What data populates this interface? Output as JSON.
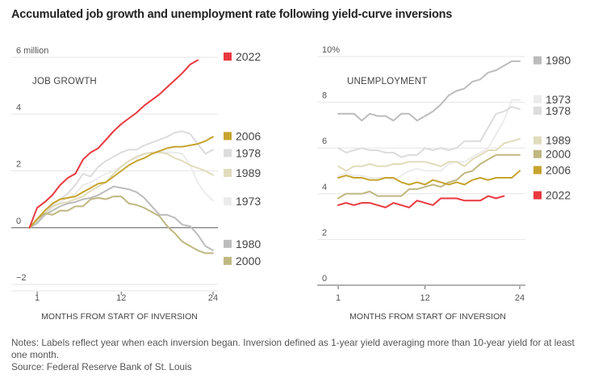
{
  "title": "Accumulated job growth and unemployment rate following yield-curve inversions",
  "notes": {
    "note": "Notes: Labels reflect year when each inversion began. Inversion defined as 1-year yield averaging more than 10-year yield for at least one month.",
    "source": "Source: Federal Reserve Bank of St. Louis"
  },
  "colors": {
    "2022": "#e8393f",
    "2006": "#c6a42e",
    "1978": "#dcdcdc",
    "1989": "#e0dcbc",
    "1973": "#ececec",
    "1980": "#bcbcbc",
    "2000": "#c0b882"
  },
  "chart_data": [
    {
      "type": "line",
      "title": "JOB GROWTH",
      "xlabel": "MONTHS FROM START OF INVERSION",
      "ylabel": "",
      "ylim": [
        -2,
        6
      ],
      "xlim": [
        0,
        24
      ],
      "yticks": [
        {
          "v": 6,
          "label": "6 million"
        },
        {
          "v": 4,
          "label": "4"
        },
        {
          "v": 2,
          "label": "2"
        },
        {
          "v": 0,
          "label": "0"
        },
        {
          "v": -2,
          "label": "−2"
        }
      ],
      "xticks": [
        {
          "v": 1,
          "label": "1"
        },
        {
          "v": 12,
          "label": "12"
        },
        {
          "v": 24,
          "label": "24"
        }
      ],
      "grid": true,
      "legend_position": "right",
      "x_start": 0,
      "series": [
        {
          "name": "1973",
          "values": [
            0,
            0.2,
            0.45,
            0.7,
            0.9,
            1.05,
            1.2,
            1.5,
            1.6,
            1.75,
            1.9,
            2.0,
            2.15,
            2.35,
            2.45,
            2.6,
            2.65,
            2.7,
            2.65,
            2.65,
            2.6,
            2.2,
            1.6,
            1.2,
            0.95
          ]
        },
        {
          "name": "1978",
          "values": [
            0,
            0.25,
            0.5,
            0.8,
            1.0,
            1.2,
            1.5,
            1.9,
            1.8,
            2.15,
            2.35,
            2.5,
            2.65,
            2.75,
            2.75,
            2.9,
            3.0,
            3.1,
            3.2,
            3.35,
            3.4,
            3.3,
            2.95,
            2.6,
            2.75
          ]
        },
        {
          "name": "1989",
          "values": [
            0,
            0.2,
            0.5,
            0.75,
            0.85,
            0.9,
            1.0,
            1.1,
            1.3,
            1.45,
            1.6,
            1.9,
            2.15,
            2.35,
            2.5,
            2.6,
            2.65,
            2.65,
            2.6,
            2.45,
            2.35,
            2.2,
            2.1,
            2.0,
            1.85
          ]
        },
        {
          "name": "1980",
          "values": [
            0,
            0.15,
            0.45,
            0.6,
            0.75,
            0.85,
            0.9,
            1.0,
            1.05,
            1.15,
            1.3,
            1.45,
            1.4,
            1.35,
            1.25,
            1.05,
            0.75,
            0.45,
            0.45,
            0.35,
            0.1,
            0.05,
            -0.25,
            -0.65,
            -0.8
          ]
        },
        {
          "name": "2000",
          "values": [
            0,
            0.3,
            0.5,
            0.45,
            0.6,
            0.6,
            0.75,
            0.75,
            1.0,
            1.05,
            1.0,
            1.1,
            1.1,
            0.85,
            0.8,
            0.7,
            0.55,
            0.4,
            0.05,
            -0.2,
            -0.5,
            -0.65,
            -0.8,
            -0.9,
            -0.9
          ]
        },
        {
          "name": "2006",
          "values": [
            0,
            0.3,
            0.6,
            0.85,
            1.0,
            1.05,
            1.1,
            1.25,
            1.4,
            1.55,
            1.6,
            1.8,
            2.0,
            2.2,
            2.35,
            2.45,
            2.6,
            2.7,
            2.8,
            2.85,
            2.85,
            2.9,
            2.95,
            3.05,
            3.2
          ]
        },
        {
          "name": "2022",
          "values": [
            0,
            0.7,
            0.9,
            1.15,
            1.5,
            1.75,
            1.9,
            2.4,
            2.65,
            2.8,
            3.1,
            3.4,
            3.65,
            3.85,
            4.05,
            4.3,
            4.5,
            4.7,
            4.95,
            5.2,
            5.45,
            5.75,
            5.9
          ]
        }
      ],
      "legend": [
        {
          "name": "2022",
          "at": 6.0
        },
        {
          "name": "2006",
          "at": 3.2
        },
        {
          "name": "1978",
          "at": 2.6
        },
        {
          "name": "1989",
          "at": 1.9
        },
        {
          "name": "1973",
          "at": 0.9
        },
        {
          "name": "1980",
          "at": -0.6
        },
        {
          "name": "2000",
          "at": -1.2
        }
      ]
    },
    {
      "type": "line",
      "title": "UNEMPLOYMENT",
      "xlabel": "MONTHS FROM START OF INVERSION",
      "ylabel": "",
      "ylim": [
        0,
        10
      ],
      "xlim": [
        1,
        24
      ],
      "yticks": [
        {
          "v": 10,
          "label": "10%"
        },
        {
          "v": 8,
          "label": "8"
        },
        {
          "v": 6,
          "label": "6"
        },
        {
          "v": 4,
          "label": "4"
        },
        {
          "v": 2,
          "label": "2"
        },
        {
          "v": 0,
          "label": "0"
        }
      ],
      "xticks": [
        {
          "v": 1,
          "label": "1"
        },
        {
          "v": 12,
          "label": "12"
        },
        {
          "v": 24,
          "label": "24"
        }
      ],
      "grid": true,
      "legend_position": "right",
      "x_start": 1,
      "series": [
        {
          "name": "1973",
          "values": [
            4.8,
            4.9,
            4.8,
            4.8,
            4.7,
            4.7,
            4.7,
            4.6,
            4.8,
            5.0,
            5.1,
            5.0,
            5.0,
            5.0,
            5.3,
            5.4,
            5.4,
            5.6,
            5.8,
            6.0,
            6.6,
            7.2,
            8.1,
            8.1
          ]
        },
        {
          "name": "1978",
          "values": [
            6.0,
            5.8,
            5.9,
            6.0,
            5.9,
            5.9,
            5.8,
            5.8,
            5.6,
            5.7,
            5.7,
            6.0,
            5.9,
            6.0,
            5.9,
            6.0,
            6.3,
            6.3,
            6.3,
            6.9,
            7.5,
            7.6,
            7.8,
            7.7
          ]
        },
        {
          "name": "1989",
          "values": [
            5.2,
            5.0,
            5.2,
            5.2,
            5.3,
            5.2,
            5.2,
            5.3,
            5.3,
            5.4,
            5.4,
            5.4,
            5.3,
            5.2,
            5.4,
            5.4,
            5.2,
            5.5,
            5.7,
            5.9,
            5.9,
            6.2,
            6.3,
            6.4
          ]
        },
        {
          "name": "1980",
          "values": [
            7.5,
            7.5,
            7.5,
            7.2,
            7.5,
            7.4,
            7.4,
            7.2,
            7.5,
            7.5,
            7.2,
            7.4,
            7.6,
            7.9,
            8.3,
            8.5,
            8.6,
            8.9,
            9.0,
            9.3,
            9.4,
            9.6,
            9.8,
            9.8
          ]
        },
        {
          "name": "2000",
          "values": [
            3.8,
            4.0,
            4.0,
            4.0,
            4.1,
            3.9,
            3.9,
            3.9,
            3.9,
            4.2,
            4.2,
            4.3,
            4.4,
            4.3,
            4.5,
            4.6,
            4.9,
            5.0,
            5.3,
            5.5,
            5.7,
            5.7,
            5.7,
            5.7
          ]
        },
        {
          "name": "2006",
          "values": [
            4.7,
            4.8,
            4.7,
            4.7,
            4.6,
            4.6,
            4.7,
            4.7,
            4.5,
            4.4,
            4.5,
            4.4,
            4.6,
            4.5,
            4.4,
            4.5,
            4.4,
            4.6,
            4.7,
            4.6,
            4.7,
            4.7,
            4.7,
            5.0
          ]
        },
        {
          "name": "2022",
          "values": [
            3.5,
            3.6,
            3.5,
            3.6,
            3.6,
            3.5,
            3.4,
            3.6,
            3.5,
            3.4,
            3.7,
            3.6,
            3.5,
            3.8,
            3.8,
            3.8,
            3.7,
            3.7,
            3.7,
            3.9,
            3.8,
            3.9
          ]
        }
      ],
      "legend": [
        {
          "name": "1980",
          "at": 9.8
        },
        {
          "name": "1973",
          "at": 8.1
        },
        {
          "name": "1978",
          "at": 7.6
        },
        {
          "name": "1989",
          "at": 6.3
        },
        {
          "name": "2000",
          "at": 5.7
        },
        {
          "name": "2006",
          "at": 5.0
        },
        {
          "name": "2022",
          "at": 3.9
        }
      ]
    }
  ]
}
